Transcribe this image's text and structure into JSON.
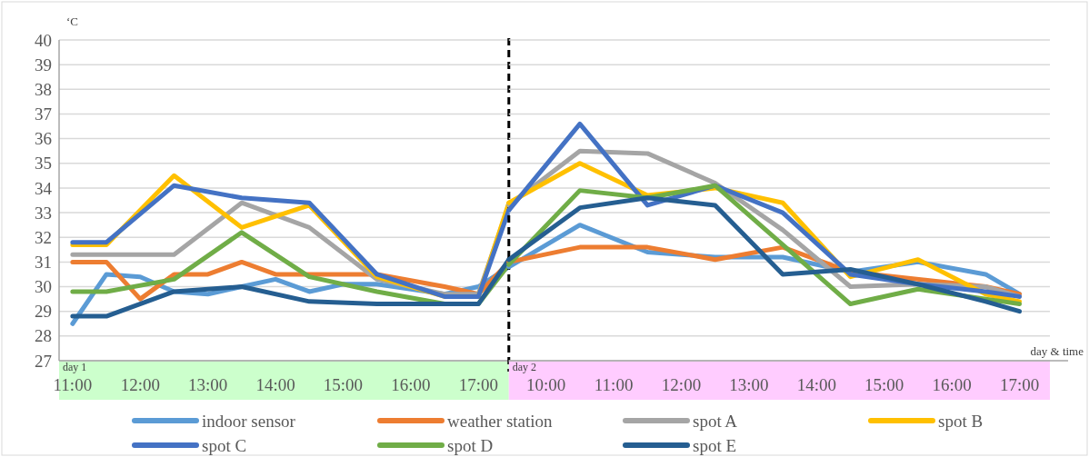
{
  "chart_data": [
    {
      "type": "line",
      "ylabel": "‘C",
      "xlim": [
        10.8,
        17.45
      ],
      "ylim": [
        27,
        40
      ],
      "yticks": [
        27,
        28,
        29,
        30,
        31,
        32,
        33,
        34,
        35,
        36,
        37,
        38,
        39,
        40
      ],
      "xticks": [
        {
          "value": 11,
          "label": "11:00"
        },
        {
          "value": 12,
          "label": "12:00"
        },
        {
          "value": 13,
          "label": "13:00"
        },
        {
          "value": 14,
          "label": "14:00"
        },
        {
          "value": 15,
          "label": "15:00"
        },
        {
          "value": 16,
          "label": "16:00"
        },
        {
          "value": 17,
          "label": "17:00"
        }
      ],
      "grid": "y",
      "legend": "bottom",
      "marker": "none",
      "line_style": "solid",
      "annotations": [
        "day 1"
      ],
      "ref_lines": [
        {
          "axis": "x",
          "value": 17.45,
          "color": "#000000",
          "line_style": "dashed"
        }
      ],
      "series": [
        {
          "name": "indoor sensor",
          "color": "#5b9bd5",
          "x": [
            11,
            11.5,
            12,
            12.5,
            13,
            13.5,
            14,
            14.5,
            15,
            15.5,
            16.5,
            17,
            17.45
          ],
          "values": [
            28.5,
            30.5,
            30.4,
            29.8,
            29.7,
            30.0,
            30.3,
            29.8,
            30.1,
            30.1,
            29.7,
            30.0,
            30.8
          ]
        },
        {
          "name": "weather station",
          "color": "#ed7d31",
          "x": [
            11,
            11.5,
            12,
            12.5,
            13,
            13.5,
            14,
            14.5,
            15.5,
            16.5,
            17,
            17.45
          ],
          "values": [
            31.0,
            31.0,
            29.5,
            30.5,
            30.5,
            31.0,
            30.5,
            30.5,
            30.5,
            30.0,
            29.7,
            31.0
          ]
        },
        {
          "name": "spot A",
          "color": "#a5a5a5",
          "x": [
            11,
            11.5,
            12.5,
            13.5,
            14.5,
            15.5,
            16.5,
            17,
            17.45
          ],
          "values": [
            31.3,
            31.3,
            31.3,
            33.4,
            32.4,
            30.3,
            29.7,
            29.7,
            33.3
          ]
        },
        {
          "name": "spot B",
          "color": "#ffc000",
          "x": [
            11,
            11.5,
            12.5,
            13.5,
            14.5,
            15.5,
            16.5,
            17,
            17.45
          ],
          "values": [
            31.7,
            31.7,
            34.5,
            32.4,
            33.3,
            30.4,
            29.6,
            29.6,
            33.4
          ]
        },
        {
          "name": "spot C",
          "color": "#4472c4",
          "x": [
            11,
            11.5,
            12.5,
            13.5,
            14.5,
            15.5,
            16.5,
            17,
            17.45
          ],
          "values": [
            31.8,
            31.8,
            34.1,
            33.6,
            33.4,
            30.5,
            29.6,
            29.6,
            33.1
          ]
        },
        {
          "name": "spot D",
          "color": "#70ad47",
          "x": [
            11,
            11.5,
            12.5,
            13.5,
            14.5,
            15.5,
            16.5,
            17,
            17.45
          ],
          "values": [
            29.8,
            29.8,
            30.3,
            32.2,
            30.4,
            29.8,
            29.3,
            29.3,
            30.9
          ]
        },
        {
          "name": "spot E",
          "color": "#255e91",
          "x": [
            11,
            11.5,
            12.5,
            13.5,
            14.5,
            15.5,
            16.5,
            17,
            17.45
          ],
          "values": [
            28.8,
            28.8,
            29.8,
            30.0,
            29.4,
            29.3,
            29.3,
            29.3,
            31.1
          ]
        }
      ]
    },
    {
      "type": "line",
      "xlabel": "day & time",
      "xlim": [
        9.45,
        17.45
      ],
      "ylim": [
        27,
        40
      ],
      "yticks": [
        27,
        28,
        29,
        30,
        31,
        32,
        33,
        34,
        35,
        36,
        37,
        38,
        39,
        40
      ],
      "tick_labels": "x",
      "xticks": [
        {
          "value": 10,
          "label": "10:00"
        },
        {
          "value": 11,
          "label": "11:00"
        },
        {
          "value": 12,
          "label": "12:00"
        },
        {
          "value": 13,
          "label": "13:00"
        },
        {
          "value": 14,
          "label": "14:00"
        },
        {
          "value": 15,
          "label": "15:00"
        },
        {
          "value": 16,
          "label": "16:00"
        },
        {
          "value": 17,
          "label": "17:00"
        }
      ],
      "grid": "y",
      "marker": "none",
      "line_style": "solid",
      "annotations": [
        "day 2"
      ],
      "series": [
        {
          "color": "#5b9bd5",
          "x": [
            9.45,
            10.5,
            11.5,
            12.5,
            13.5,
            14.5,
            15.5,
            16.5,
            17
          ],
          "values": [
            30.8,
            32.5,
            31.4,
            31.2,
            31.2,
            30.6,
            31.0,
            30.5,
            29.7
          ]
        },
        {
          "color": "#ed7d31",
          "x": [
            9.45,
            10.5,
            11.5,
            12.5,
            13.5,
            14.5,
            16.5,
            17
          ],
          "values": [
            31.0,
            31.6,
            31.6,
            31.1,
            31.6,
            30.6,
            30.0,
            29.7
          ]
        },
        {
          "color": "#a5a5a5",
          "x": [
            9.45,
            10.5,
            11.5,
            12.5,
            13.5,
            14.5,
            15.5,
            16.5,
            17
          ],
          "values": [
            33.3,
            35.5,
            35.4,
            34.2,
            32.3,
            30.0,
            30.1,
            30.0,
            29.6
          ]
        },
        {
          "color": "#ffc000",
          "x": [
            9.45,
            10.5,
            11.5,
            12.5,
            13.5,
            14.5,
            15.5,
            16.5,
            17
          ],
          "values": [
            33.4,
            35.0,
            33.7,
            34.0,
            33.4,
            30.4,
            31.1,
            29.7,
            29.4
          ]
        },
        {
          "color": "#4472c4",
          "x": [
            9.45,
            10.5,
            11.5,
            12.5,
            13.5,
            14.5,
            15.5,
            16.5,
            17
          ],
          "values": [
            33.1,
            36.6,
            33.3,
            34.1,
            33.0,
            30.5,
            30.1,
            29.8,
            29.6
          ]
        },
        {
          "color": "#70ad47",
          "x": [
            9.45,
            10.5,
            11.5,
            12.5,
            13.5,
            14.5,
            15.5,
            16.5,
            17
          ],
          "values": [
            30.9,
            33.9,
            33.6,
            34.1,
            31.7,
            29.3,
            29.9,
            29.5,
            29.3
          ]
        },
        {
          "color": "#255e91",
          "x": [
            9.45,
            10.5,
            11.5,
            12.5,
            13.5,
            14.5,
            15.5,
            16.5,
            17
          ],
          "values": [
            31.1,
            33.2,
            33.6,
            33.3,
            30.5,
            30.7,
            30.1,
            29.4,
            29.0
          ]
        }
      ]
    }
  ]
}
